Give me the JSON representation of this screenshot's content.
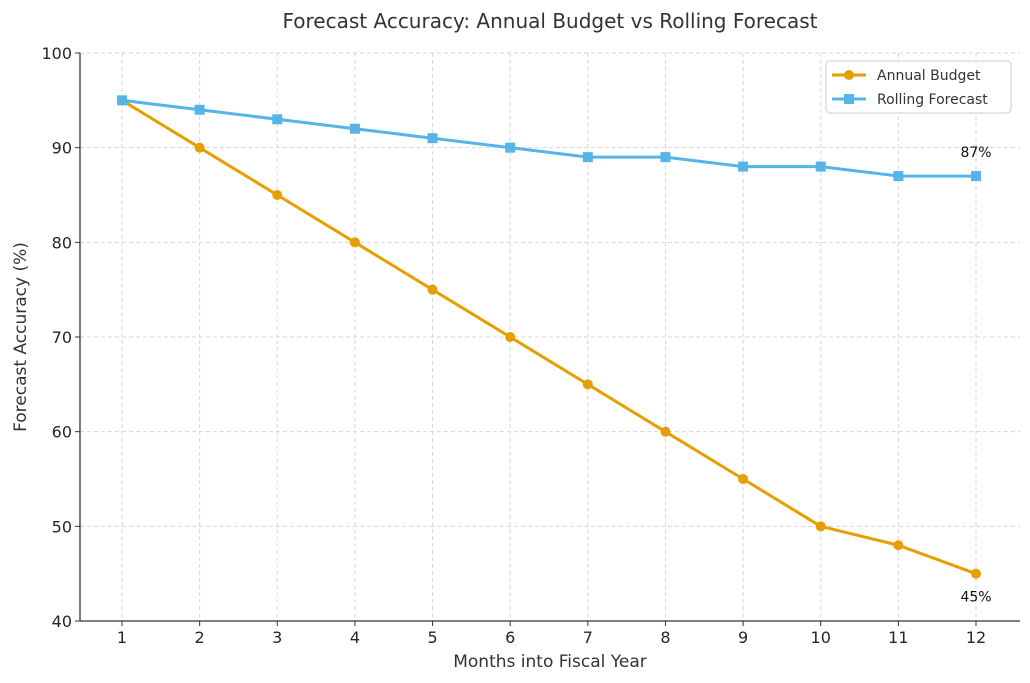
{
  "chart_data": {
    "type": "line",
    "title": "Forecast Accuracy: Annual Budget vs Rolling Forecast",
    "xlabel": "Months into Fiscal Year",
    "ylabel": "Forecast Accuracy (%)",
    "x": [
      1,
      2,
      3,
      4,
      5,
      6,
      7,
      8,
      9,
      10,
      11,
      12
    ],
    "xlim": [
      0.45,
      12.55
    ],
    "ylim": [
      40,
      100
    ],
    "yticks": [
      40,
      50,
      60,
      70,
      80,
      90,
      100
    ],
    "xticks": [
      1,
      2,
      3,
      4,
      5,
      6,
      7,
      8,
      9,
      10,
      11,
      12
    ],
    "grid": true,
    "legend_position": "top-right",
    "series": [
      {
        "name": "Annual Budget",
        "color": "#E69F00",
        "marker": "circle",
        "values": [
          95,
          90,
          85,
          80,
          75,
          70,
          65,
          60,
          55,
          50,
          48,
          45
        ]
      },
      {
        "name": "Rolling Forecast",
        "color": "#56B4E9",
        "marker": "square",
        "values": [
          95,
          94,
          93,
          92,
          91,
          90,
          89,
          89,
          88,
          88,
          87,
          87
        ]
      }
    ],
    "annotations": [
      {
        "text": "87%",
        "series": "Rolling Forecast",
        "x": 12,
        "y": 87,
        "placement": "above"
      },
      {
        "text": "45%",
        "series": "Annual Budget",
        "x": 12,
        "y": 45,
        "placement": "below"
      }
    ]
  }
}
